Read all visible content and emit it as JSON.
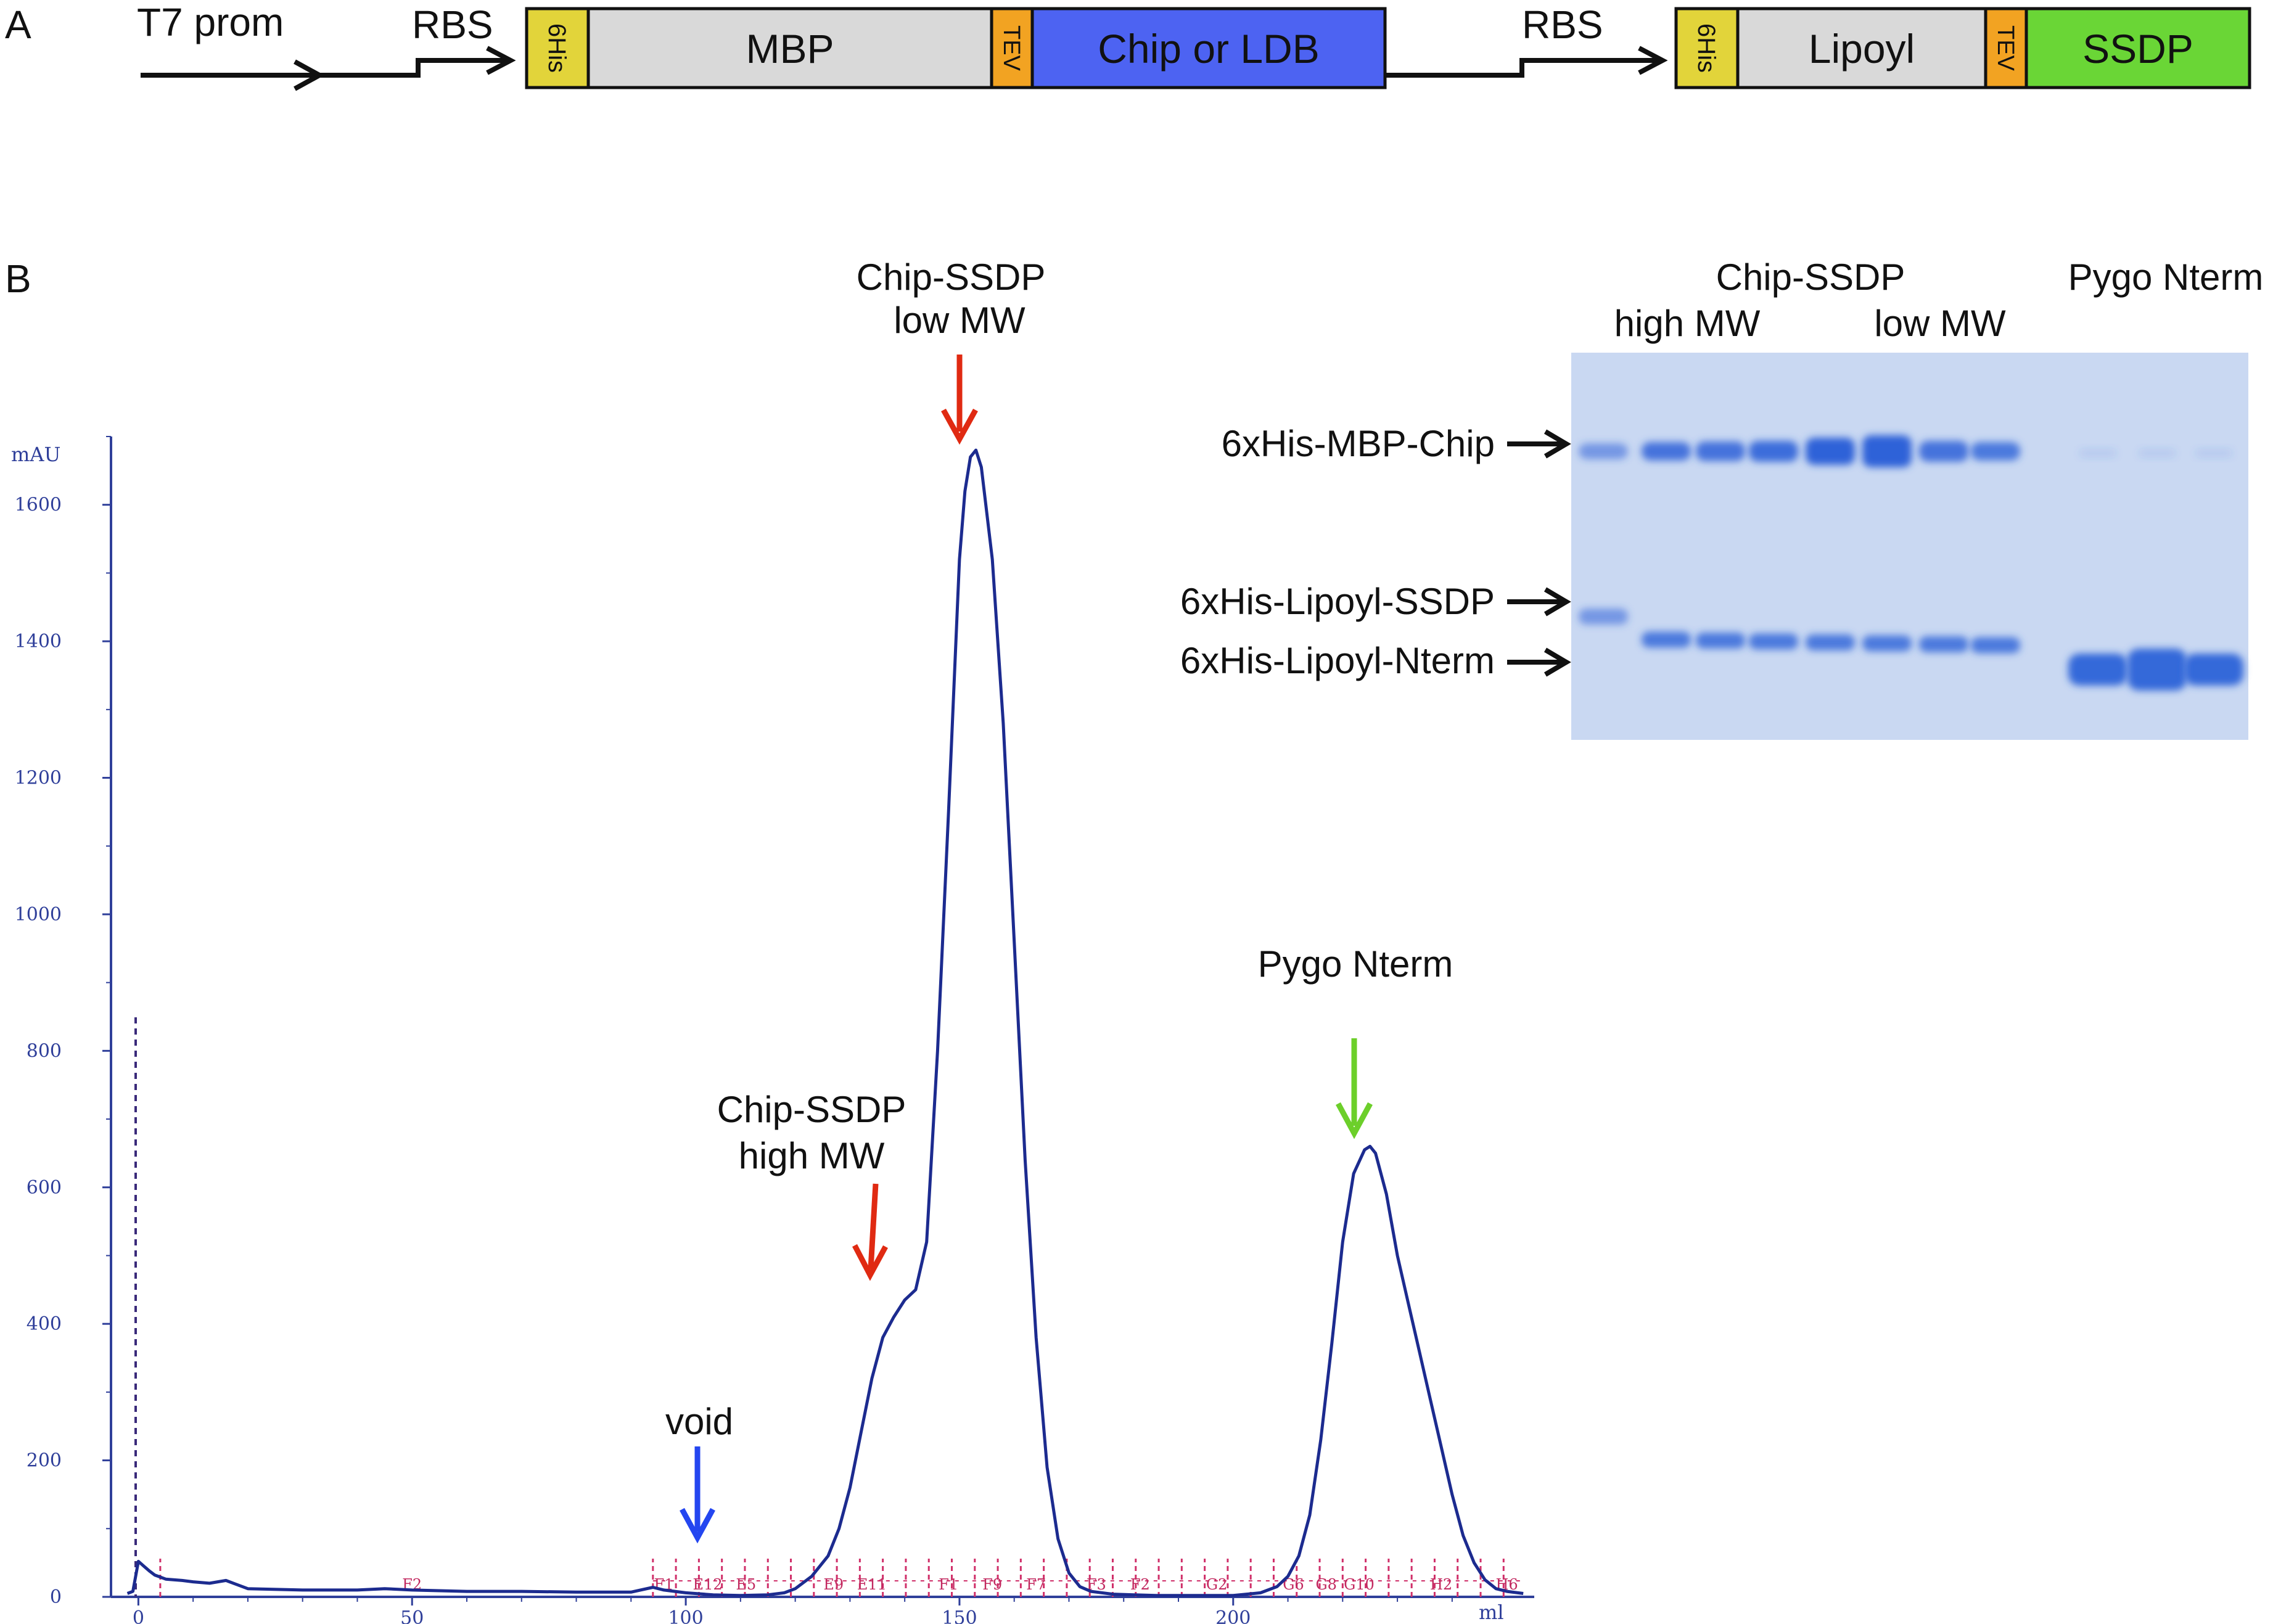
{
  "panel_a": {
    "label": "A",
    "promoter": "T7 prom",
    "rbs_1": "RBS",
    "rbs_2": "RBS",
    "construct_1": [
      {
        "label": "6His",
        "color": "#e2d43a"
      },
      {
        "label": "MBP",
        "color": "#d9d9d9"
      },
      {
        "label": "TEV",
        "color": "#f2a322"
      },
      {
        "label": "Chip or LDB",
        "color": "#4d63f2"
      }
    ],
    "construct_2": [
      {
        "label": "6His",
        "color": "#e2d43a"
      },
      {
        "label": "Lipoyl",
        "color": "#d9d9d9"
      },
      {
        "label": "TEV",
        "color": "#f2a322"
      },
      {
        "label": "SSDP",
        "color": "#6ad636"
      }
    ]
  },
  "panel_b": {
    "label": "B",
    "annotations": {
      "low_mw_line1": "Chip-SSDP",
      "low_mw_line2": "low MW",
      "high_mw_line1": "Chip-SSDP",
      "high_mw_line2": "high MW",
      "void": "void",
      "pygo": "Pygo Nterm"
    },
    "arrow_colors": {
      "chip_ssdp": "#e02a12",
      "void": "#2446f0",
      "pygo": "#6ccf2a"
    },
    "gel": {
      "header_chip": "Chip-SSDP",
      "header_high": "high MW",
      "header_low": "low MW",
      "header_pygo": "Pygo Nterm",
      "band_labels": [
        "6xHis-MBP-Chip",
        "6xHis-Lipoyl-SSDP",
        "6xHis-Lipoyl-Nterm"
      ],
      "background_color": "#c9d8f2",
      "band_color": "#2d62d8"
    },
    "fraction_labels": [
      "F2",
      "F1",
      "E12",
      "E5",
      "E9",
      "E11",
      "F1",
      "F9",
      "F7",
      "F3",
      "F2",
      "G2",
      "G6",
      "G8",
      "G10",
      "H2",
      "H6"
    ]
  },
  "chart_data": {
    "type": "line",
    "title": "",
    "xlabel": "ml",
    "ylabel": "mAU",
    "xlim": [
      -5,
      255
    ],
    "ylim": [
      0,
      1700
    ],
    "x_ticks": [
      0,
      50,
      100,
      150,
      200
    ],
    "y_ticks": [
      0,
      200,
      400,
      600,
      800,
      1000,
      1200,
      1400,
      1600
    ],
    "grid": false,
    "line_color": "#1c2b8f",
    "series": [
      {
        "name": "",
        "x": [
          -2,
          -1,
          0,
          1,
          2,
          3,
          5,
          8,
          10,
          13,
          16,
          20,
          30,
          40,
          45,
          50,
          55,
          60,
          70,
          80,
          90,
          94,
          96,
          100,
          105,
          110,
          115,
          118,
          120,
          123,
          126,
          128,
          130,
          132,
          134,
          136,
          138,
          140,
          142,
          144,
          146,
          148,
          150,
          151,
          152,
          153,
          154,
          156,
          158,
          160,
          162,
          164,
          166,
          168,
          170,
          172,
          174,
          178,
          182,
          186,
          190,
          200,
          205,
          208,
          210,
          212,
          214,
          216,
          218,
          220,
          222,
          224,
          225,
          226,
          228,
          230,
          232,
          234,
          236,
          238,
          240,
          242,
          244,
          246,
          248,
          250,
          253
        ],
        "y": [
          5,
          8,
          52,
          45,
          38,
          32,
          26,
          24,
          22,
          20,
          24,
          12,
          10,
          10,
          12,
          10,
          9,
          8,
          8,
          7,
          7,
          14,
          10,
          6,
          3,
          2,
          3,
          6,
          12,
          30,
          60,
          100,
          160,
          240,
          320,
          380,
          410,
          435,
          450,
          520,
          800,
          1150,
          1520,
          1620,
          1670,
          1680,
          1655,
          1520,
          1280,
          960,
          640,
          380,
          190,
          85,
          35,
          15,
          8,
          4,
          3,
          2,
          2,
          2,
          6,
          15,
          30,
          60,
          120,
          230,
          370,
          520,
          620,
          655,
          660,
          650,
          590,
          500,
          430,
          360,
          290,
          220,
          150,
          90,
          50,
          25,
          12,
          8,
          5
        ]
      }
    ]
  }
}
